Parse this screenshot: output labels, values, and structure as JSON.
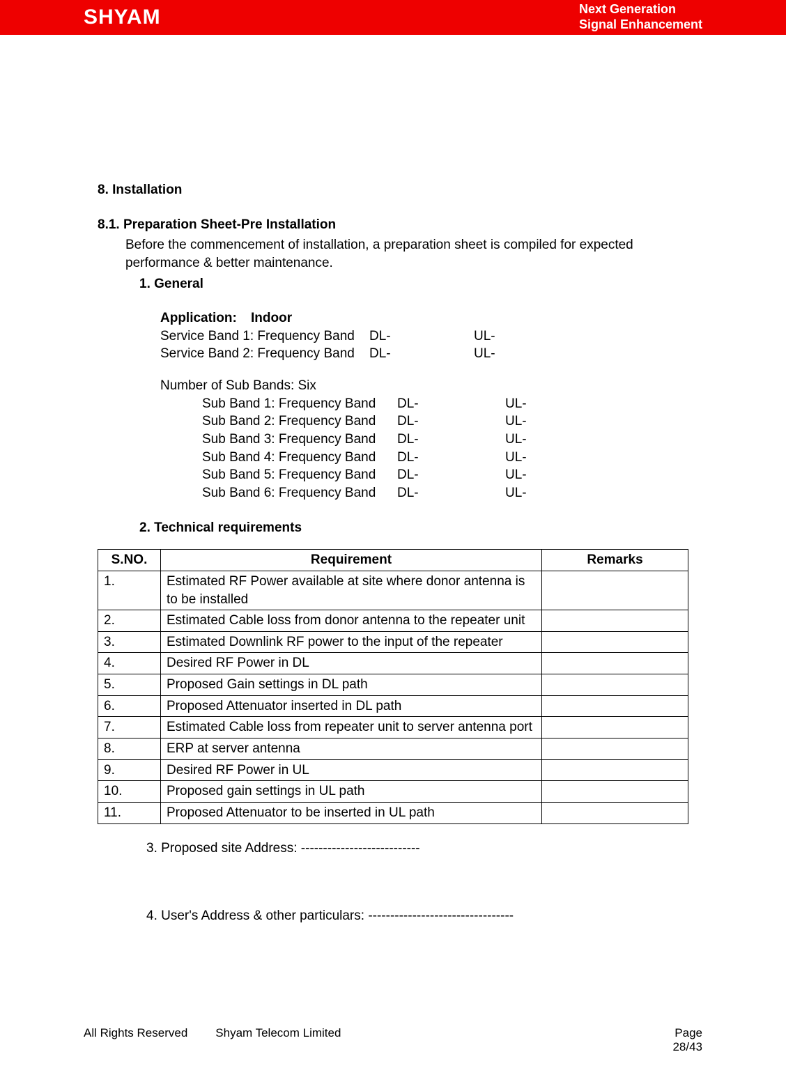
{
  "header": {
    "logo": "SHYAM",
    "tagline1": "Next Generation",
    "tagline2": "Signal Enhancement"
  },
  "section": {
    "h1": "8. Installation",
    "h2": "8.1. Preparation Sheet-Pre Installation",
    "intro": "Before the commencement of installation, a preparation sheet is compiled for expected performance & better maintenance.",
    "general_heading": "1. General",
    "application_label": "Application:",
    "application_value": "Indoor",
    "service_bands": [
      {
        "label": "Service Band 1:  Frequency Band",
        "dl": "DL-",
        "ul": "UL-"
      },
      {
        "label": "Service Band 2:  Frequency Band",
        "dl": "DL-",
        "ul": "UL-"
      }
    ],
    "sub_bands_count": "Number of Sub Bands: Six",
    "sub_bands": [
      {
        "label": "Sub Band 1: Frequency Band",
        "dl": "DL-",
        "ul": "UL-"
      },
      {
        "label": "Sub Band 2: Frequency Band",
        "dl": "DL-",
        "ul": "UL-"
      },
      {
        "label": "Sub Band 3: Frequency Band",
        "dl": "DL-",
        "ul": "UL-"
      },
      {
        "label": "Sub Band 4: Frequency Band",
        "dl": "DL-",
        "ul": "UL-"
      },
      {
        "label": "Sub Band 5: Frequency Band",
        "dl": "DL-",
        "ul": "UL-"
      },
      {
        "label": "Sub Band 6: Frequency Band",
        "dl": "DL-",
        "ul": "UL-"
      }
    ],
    "tech_heading": "2. Technical requirements",
    "table": {
      "columns": [
        "S.NO.",
        "Requirement",
        "Remarks"
      ],
      "rows": [
        [
          "1.",
          "Estimated RF Power available at site where donor antenna is to be installed",
          ""
        ],
        [
          "2.",
          "Estimated Cable loss from donor antenna to the repeater unit",
          ""
        ],
        [
          "3.",
          "Estimated Downlink RF power to the input of the repeater",
          ""
        ],
        [
          "4.",
          "Desired RF Power in DL",
          ""
        ],
        [
          "5.",
          "Proposed Gain settings in DL path",
          ""
        ],
        [
          "6.",
          "Proposed Attenuator inserted in DL path",
          ""
        ],
        [
          "7.",
          "Estimated Cable loss from repeater unit to server antenna port",
          ""
        ],
        [
          "8.",
          "ERP at server antenna",
          ""
        ],
        [
          "9.",
          "Desired RF Power in UL",
          ""
        ],
        [
          "10.",
          "Proposed gain settings in UL path",
          ""
        ],
        [
          "11.",
          "Proposed Attenuator to be inserted in UL path",
          ""
        ]
      ]
    },
    "item3": "3. Proposed site Address: ---------------------------",
    "item4": "4. User's Address & other particulars: ---------------------------------"
  },
  "footer": {
    "left1": "All Rights Reserved",
    "left2": "Shyam Telecom Limited",
    "page_label": "Page",
    "page_num": "28/43"
  }
}
